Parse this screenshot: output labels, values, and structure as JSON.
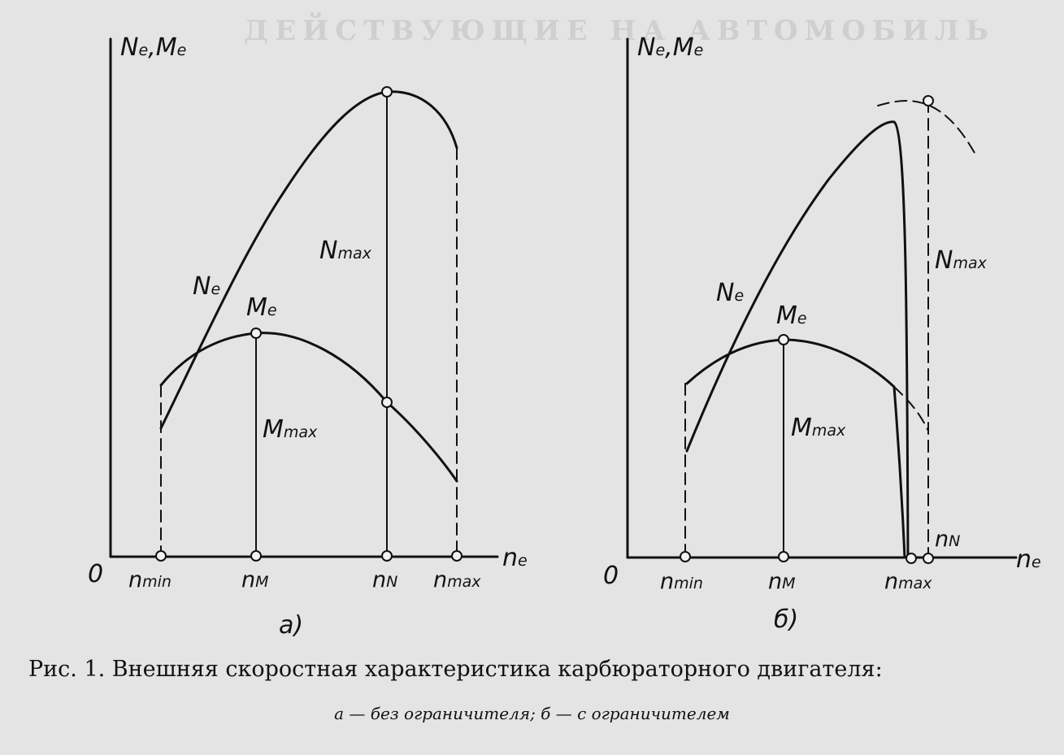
{
  "figure": {
    "panel_a": {
      "y_axis_label_main": "N",
      "y_axis_label_sub1": "e",
      "y_axis_sep": ",",
      "y_axis_label_main2": "M",
      "y_axis_label_sub2": "e",
      "x_axis_label_main": "n",
      "x_axis_label_sub": "e",
      "origin": "0",
      "curve_power_main": "N",
      "curve_power_sub": "e",
      "curve_torque_main": "M",
      "curve_torque_sub": "e",
      "n_max_power_main": "N",
      "n_max_power_sub": "max",
      "m_max_main": "M",
      "m_max_sub": "max",
      "tick_nmin_main": "n",
      "tick_nmin_sub": "min",
      "tick_nM_main": "n",
      "tick_nM_sub": "M",
      "tick_nN_main": "n",
      "tick_nN_sub": "N",
      "tick_nmax_main": "n",
      "tick_nmax_sub": "max",
      "panel_label": "а)"
    },
    "panel_b": {
      "y_axis_label_main": "N",
      "y_axis_label_sub1": "e",
      "y_axis_sep": ",",
      "y_axis_label_main2": "M",
      "y_axis_label_sub2": "e",
      "x_axis_label_main": "n",
      "x_axis_label_sub": "e",
      "origin": "0",
      "curve_power_main": "N",
      "curve_power_sub": "e",
      "curve_torque_main": "M",
      "curve_torque_sub": "e",
      "n_max_power_main": "N",
      "n_max_power_sub": "max",
      "m_max_main": "M",
      "m_max_sub": "max",
      "tick_nmin_main": "n",
      "tick_nmin_sub": "min",
      "tick_nM_main": "n",
      "tick_nM_sub": "M",
      "tick_nN_main": "n",
      "tick_nN_sub": "N",
      "tick_nmax_main": "n",
      "tick_nmax_sub": "max",
      "panel_label": "б)"
    },
    "caption_line1": "Рис. 1. Внешняя скоростная характеристика карбюраторного двигателя:",
    "caption_line2": "а — без ограничителя; б — с ограничителем"
  },
  "colors": {
    "ink": "#111111",
    "paper": "#e4e4e4"
  }
}
